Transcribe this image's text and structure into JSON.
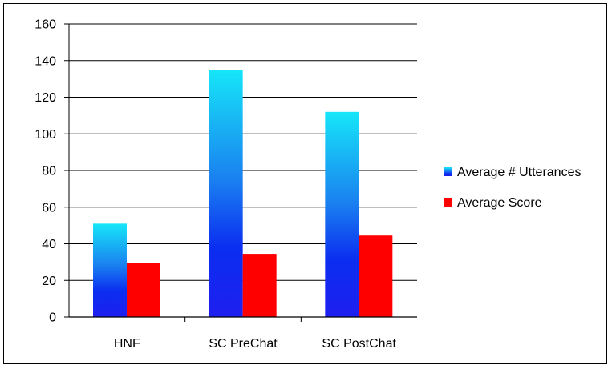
{
  "chart_data": {
    "type": "bar",
    "categories": [
      "HNF",
      "SC PreChat",
      "SC PostChat"
    ],
    "series": [
      {
        "name": "Average # Utterances",
        "values": [
          51,
          135,
          112
        ],
        "color": "#0a2cf0"
      },
      {
        "name": "Average Score",
        "values": [
          29.5,
          34.5,
          44.5
        ],
        "color": "#ff0000"
      }
    ],
    "ylim": [
      0,
      160
    ],
    "yticks": [
      0,
      20,
      40,
      60,
      80,
      100,
      120,
      140,
      160
    ],
    "grid": true,
    "legend_position": "right",
    "title": "",
    "xlabel": "",
    "ylabel": ""
  }
}
